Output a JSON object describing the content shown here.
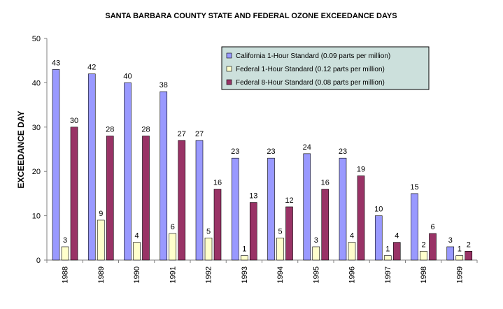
{
  "chart_data": {
    "type": "bar",
    "title": "SANTA BARBARA COUNTY STATE AND FEDERAL OZONE EXCEEDANCE DAYS",
    "ylabel": "EXCEEDANCE DAY",
    "xlabel": "",
    "ylim": [
      0,
      50
    ],
    "yticks": [
      "0",
      "10",
      "20",
      "30",
      "40",
      "50"
    ],
    "categories": [
      "1988",
      "1989",
      "1990",
      "1991",
      "1992",
      "1993",
      "1994",
      "1995",
      "1996",
      "1997",
      "1998",
      "1999"
    ],
    "series": [
      {
        "name": "California 1-Hour Standard (0.09 parts per million)",
        "color": "#9999ff",
        "values": [
          43,
          42,
          40,
          38,
          27,
          23,
          23,
          24,
          23,
          10,
          15,
          3
        ]
      },
      {
        "name": "Federal 1-Hour Standard (0.12 parts per million)",
        "color": "#ffffcc",
        "values": [
          3,
          9,
          4,
          6,
          5,
          1,
          5,
          3,
          4,
          1,
          2,
          1
        ]
      },
      {
        "name": "Federal 8-Hour Standard (0.08 parts per million)",
        "color": "#993366",
        "values": [
          30,
          28,
          28,
          27,
          16,
          13,
          12,
          16,
          19,
          4,
          6,
          2
        ]
      }
    ],
    "grid": false,
    "legend_position": "top-right",
    "legend_background": "#cce0dc"
  }
}
